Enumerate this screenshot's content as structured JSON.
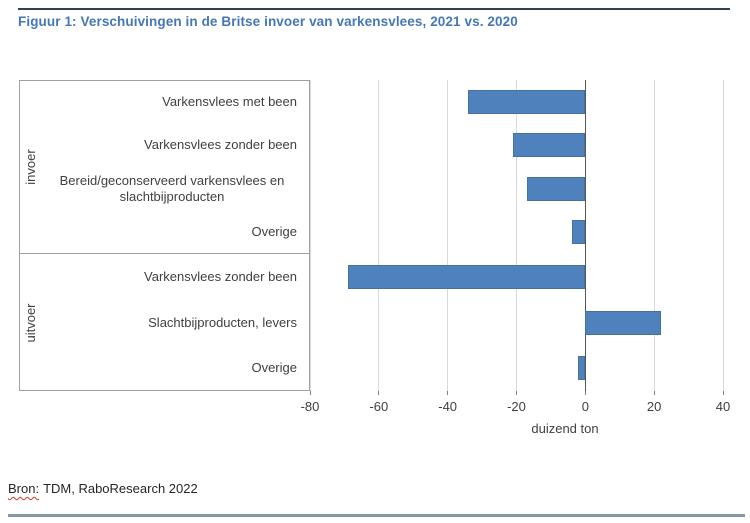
{
  "page": {
    "title": "Figuur 1: Verschuivingen in de Britse invoer van varkensvlees, 2021 vs. 2020",
    "source_label": "Bron:",
    "source_text": "TDM, RaboResearch 2022"
  },
  "colors": {
    "title": "#4577b5",
    "bar_fill": "#4f81bd",
    "bar_border": "#44729f",
    "gridline": "#d9d9d9",
    "zero_axis": "#595959",
    "box_border": "#a0a0a0",
    "top_rule": "#33414e",
    "bottom_rule": "#8496a8",
    "axis_text": "#404040",
    "spellcheck_wavy": "#d03a2b"
  },
  "chart_data": {
    "type": "bar",
    "orientation": "horizontal",
    "title": "Figuur 1: Verschuivingen in de Britse invoer van varkensvlees, 2021 vs. 2020",
    "xlabel": "duizend ton",
    "xlim": [
      -80,
      40
    ],
    "xticks": [
      -80,
      -60,
      -40,
      -20,
      0,
      20,
      40
    ],
    "grid": true,
    "bar_color": "#4f81bd",
    "groups": [
      {
        "name": "invoer",
        "items": [
          {
            "label": "Varkensvlees met been",
            "value": -34
          },
          {
            "label": "Varkensvlees zonder been",
            "value": -21
          },
          {
            "label": "Bereid/geconserveerd varkensvlees en slachtbijproducten",
            "value": -17
          },
          {
            "label": "Overige",
            "value": -4
          }
        ]
      },
      {
        "name": "uitvoer",
        "items": [
          {
            "label": "Varkensvlees zonder been",
            "value": -69
          },
          {
            "label": "Slachtbijproducten, levers",
            "value": 22
          },
          {
            "label": "Overige",
            "value": -2
          }
        ]
      }
    ]
  }
}
